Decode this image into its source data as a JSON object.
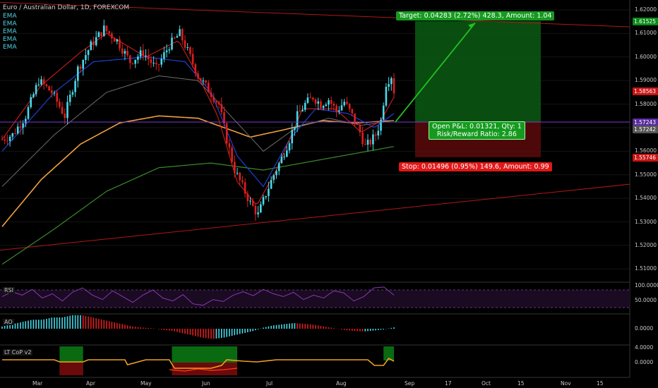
{
  "header": {
    "title": "Euro / Australian Dollar, 1D, FOREXCOM",
    "indicators": [
      "EMA",
      "EMA",
      "EMA",
      "EMA",
      "EMA"
    ]
  },
  "colors": {
    "background": "#000000",
    "bull": "#48d8e8",
    "bear": "#e01e1e",
    "ema_fast": "#e02020",
    "ema_blue": "#1e3fd0",
    "ema_grey": "#6e6e6e",
    "ema_orange": "#f0a040",
    "ema_green": "#3a8a2a",
    "trendline": "#b01818",
    "target_zone": "#0a5a14",
    "stop_zone": "#5a0a0a",
    "rsi": "#8a3ab0",
    "current_price_line": "#7a3ad0"
  },
  "axes": {
    "price_ticks": [
      "1.62000",
      "1.61000",
      "1.60000",
      "1.59000",
      "1.58000",
      "1.57000",
      "1.56000",
      "1.55000",
      "1.54000",
      "1.53000",
      "1.52000",
      "1.51000"
    ],
    "price_range": [
      1.505,
      1.623
    ],
    "x_labels": [
      "Mar",
      "Apr",
      "May",
      "Jun",
      "Jul",
      "Aug",
      "Sep",
      "17",
      "Oct",
      "15",
      "Nov",
      "15"
    ],
    "rsi_ticks": [
      "100.0000",
      "50.0000"
    ],
    "ao_ticks": [
      "0.0000"
    ],
    "cop_ticks": [
      "4.0000",
      "0.0000"
    ]
  },
  "price_tags": [
    {
      "label": "1.61525",
      "value": 1.61525,
      "color": "#0a8a1a"
    },
    {
      "label": "1.58563",
      "value": 1.58563,
      "color": "#c81414"
    },
    {
      "label": "1.57243",
      "value": 1.57243,
      "color": "#5a2aa0"
    },
    {
      "label": "1.57242",
      "value": 1.57242,
      "color": "#555555"
    },
    {
      "label": "1.55746",
      "value": 1.55746,
      "color": "#c81414"
    }
  ],
  "position": {
    "target_text": "Target: 0.04283 (2.72%) 428.3, Amount: 1.04",
    "open_pl_text": "Open P&L: 0.01321, Qty: 1",
    "risk_reward_text": "Risk/Reward Ratio: 2.86",
    "stop_text": "Stop: 0.01496 (0.95%) 149.6, Amount: 0.99",
    "entry": 1.5724,
    "target": 1.61525,
    "stop": 1.55746
  },
  "subpanes": {
    "rsi_label": "RSI",
    "ao_label": "AO",
    "cop_label": "LT CoP v2"
  },
  "chart_data": {
    "type": "candlestick",
    "title": "Euro / Australian Dollar, 1D, FOREXCOM",
    "close_path": [
      [
        0,
        1.565
      ],
      [
        8,
        1.567
      ],
      [
        18,
        1.575
      ],
      [
        28,
        1.59
      ],
      [
        38,
        1.585
      ],
      [
        48,
        1.575
      ],
      [
        58,
        1.595
      ],
      [
        68,
        1.605
      ],
      [
        78,
        1.612
      ],
      [
        88,
        1.607
      ],
      [
        98,
        1.598
      ],
      [
        108,
        1.602
      ],
      [
        118,
        1.595
      ],
      [
        128,
        1.605
      ],
      [
        136,
        1.61
      ],
      [
        144,
        1.6
      ],
      [
        150,
        1.592
      ],
      [
        158,
        1.586
      ],
      [
        166,
        1.58
      ],
      [
        172,
        1.565
      ],
      [
        178,
        1.552
      ],
      [
        184,
        1.545
      ],
      [
        190,
        1.538
      ],
      [
        196,
        1.533
      ],
      [
        202,
        1.542
      ],
      [
        208,
        1.55
      ],
      [
        214,
        1.557
      ],
      [
        220,
        1.565
      ],
      [
        226,
        1.575
      ],
      [
        232,
        1.58
      ],
      [
        238,
        1.583
      ],
      [
        244,
        1.58
      ],
      [
        250,
        1.582
      ],
      [
        256,
        1.577
      ],
      [
        262,
        1.581
      ],
      [
        268,
        1.575
      ],
      [
        274,
        1.568
      ],
      [
        278,
        1.562
      ],
      [
        282,
        1.564
      ],
      [
        286,
        1.567
      ],
      [
        290,
        1.573
      ],
      [
        294,
        1.589
      ],
      [
        298,
        1.592
      ],
      [
        300,
        1.5856
      ]
    ],
    "ema_fast": [
      [
        0,
        1.565
      ],
      [
        30,
        1.588
      ],
      [
        60,
        1.602
      ],
      [
        80,
        1.61
      ],
      [
        110,
        1.6
      ],
      [
        135,
        1.607
      ],
      [
        150,
        1.592
      ],
      [
        165,
        1.575
      ],
      [
        180,
        1.547
      ],
      [
        195,
        1.537
      ],
      [
        210,
        1.552
      ],
      [
        230,
        1.578
      ],
      [
        255,
        1.578
      ],
      [
        275,
        1.568
      ],
      [
        290,
        1.573
      ],
      [
        300,
        1.583
      ]
    ],
    "ema_blue": [
      [
        0,
        1.56
      ],
      [
        40,
        1.585
      ],
      [
        70,
        1.598
      ],
      [
        110,
        1.6
      ],
      [
        140,
        1.598
      ],
      [
        160,
        1.585
      ],
      [
        180,
        1.558
      ],
      [
        200,
        1.545
      ],
      [
        220,
        1.565
      ],
      [
        240,
        1.578
      ],
      [
        265,
        1.576
      ],
      [
        285,
        1.57
      ],
      [
        300,
        1.576
      ]
    ],
    "ema_grey": [
      [
        0,
        1.545
      ],
      [
        40,
        1.567
      ],
      [
        80,
        1.585
      ],
      [
        120,
        1.592
      ],
      [
        150,
        1.59
      ],
      [
        175,
        1.575
      ],
      [
        200,
        1.56
      ],
      [
        225,
        1.57
      ],
      [
        250,
        1.574
      ],
      [
        275,
        1.571
      ],
      [
        300,
        1.573
      ]
    ],
    "ema_orange": [
      [
        0,
        1.528
      ],
      [
        30,
        1.548
      ],
      [
        60,
        1.563
      ],
      [
        90,
        1.572
      ],
      [
        120,
        1.575
      ],
      [
        150,
        1.574
      ],
      [
        170,
        1.57
      ],
      [
        190,
        1.566
      ],
      [
        215,
        1.569
      ],
      [
        245,
        1.573
      ],
      [
        270,
        1.572
      ],
      [
        300,
        1.573
      ]
    ],
    "ema_green": [
      [
        0,
        1.512
      ],
      [
        40,
        1.527
      ],
      [
        80,
        1.543
      ],
      [
        120,
        1.553
      ],
      [
        160,
        1.555
      ],
      [
        200,
        1.552
      ],
      [
        240,
        1.556
      ],
      [
        270,
        1.559
      ],
      [
        300,
        1.562
      ]
    ],
    "rsi": [
      55,
      72,
      60,
      80,
      50,
      65,
      40,
      70,
      85,
      60,
      45,
      75,
      55,
      35,
      60,
      78,
      50,
      40,
      62,
      30,
      25,
      45,
      38,
      60,
      72,
      58,
      80,
      65,
      55,
      70,
      45,
      60,
      50,
      75,
      68,
      40,
      55,
      85,
      88,
      60
    ],
    "ao": [
      1,
      2,
      3,
      4,
      4,
      5,
      5,
      6,
      6,
      5,
      4,
      3,
      2,
      1,
      0.5,
      0.2,
      -0.5,
      -1,
      -2,
      -3,
      -4,
      -4.5,
      -4,
      -3,
      -2,
      -1,
      0.5,
      1.5,
      2,
      2.5,
      2.2,
      1.8,
      1,
      0.3,
      -0.5,
      -1,
      -1.2,
      -0.8,
      -0.3,
      0.6
    ]
  }
}
